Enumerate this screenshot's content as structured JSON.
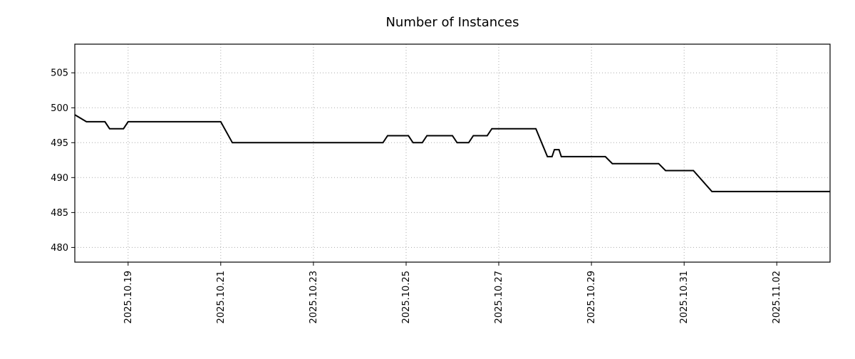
{
  "page": {
    "background": "#ffffff"
  },
  "chart_data": {
    "type": "line",
    "title": "Number of Instances",
    "grid": {
      "show": true,
      "style": "dotted",
      "color": "#aaaaaa"
    },
    "legend": {
      "show": false
    },
    "x_axis": {
      "min": 17.85,
      "max": 34.15,
      "ticks": [
        19,
        21,
        23,
        25,
        27,
        29,
        31,
        33
      ],
      "tick_labels": [
        "2025.10.19",
        "2025.10.21",
        "2025.10.23",
        "2025.10.25",
        "2025.10.27",
        "2025.10.29",
        "2025.10.31",
        "2025.11.02"
      ],
      "label_rotation_deg": 90
    },
    "y_axis": {
      "min": 477.9,
      "max": 509.1,
      "ticks": [
        480,
        485,
        490,
        495,
        500,
        505
      ],
      "tick_labels": [
        "480",
        "485",
        "490",
        "495",
        "500",
        "505"
      ]
    },
    "series": [
      {
        "name": "instances",
        "color": "#000000",
        "line_width": 2,
        "points": [
          [
            17.85,
            499
          ],
          [
            18.1,
            498
          ],
          [
            18.5,
            498
          ],
          [
            18.6,
            497
          ],
          [
            18.9,
            497
          ],
          [
            19.0,
            498
          ],
          [
            21.0,
            498
          ],
          [
            21.25,
            495
          ],
          [
            24.5,
            495
          ],
          [
            24.6,
            496
          ],
          [
            25.05,
            496
          ],
          [
            25.15,
            495
          ],
          [
            25.35,
            495
          ],
          [
            25.45,
            496
          ],
          [
            26.0,
            496
          ],
          [
            26.1,
            495
          ],
          [
            26.35,
            495
          ],
          [
            26.45,
            496
          ],
          [
            26.75,
            496
          ],
          [
            26.85,
            497
          ],
          [
            27.8,
            497
          ],
          [
            28.05,
            493
          ],
          [
            28.15,
            493
          ],
          [
            28.2,
            494
          ],
          [
            28.3,
            494
          ],
          [
            28.35,
            493
          ],
          [
            29.3,
            493
          ],
          [
            29.45,
            492
          ],
          [
            30.45,
            492
          ],
          [
            30.6,
            491
          ],
          [
            31.2,
            491
          ],
          [
            31.6,
            488
          ],
          [
            34.15,
            488
          ]
        ]
      }
    ]
  }
}
